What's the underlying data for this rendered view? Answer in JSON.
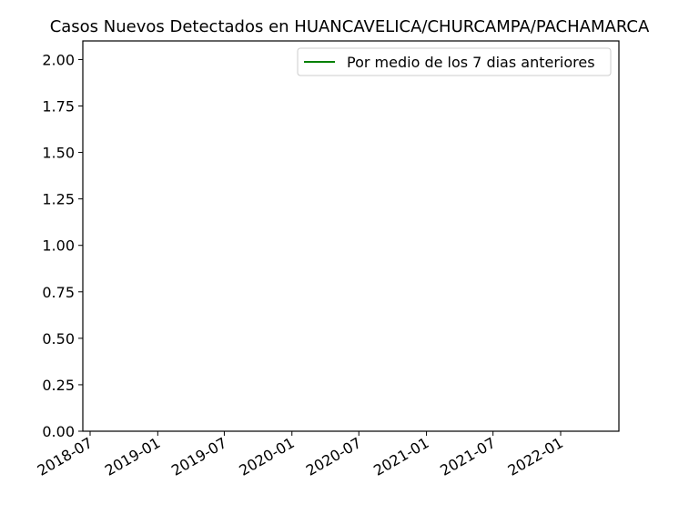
{
  "chart_data": {
    "type": "line",
    "title": "Casos Nuevos Detectados en HUANCAVELICA/CHURCAMPA/PACHAMARCA",
    "xlabel": "",
    "ylabel": "",
    "ylim": [
      0,
      2.1
    ],
    "yticks": [
      0.0,
      0.25,
      0.5,
      0.75,
      1.0,
      1.25,
      1.5,
      1.75,
      2.0
    ],
    "ytick_labels": [
      "0.00",
      "0.25",
      "0.50",
      "0.75",
      "1.00",
      "1.25",
      "1.50",
      "1.75",
      "2.00"
    ],
    "xticks": [
      "2018-07-01",
      "2019-01-01",
      "2019-07-01",
      "2020-01-01",
      "2020-07-01",
      "2021-01-01",
      "2021-07-01",
      "2022-01-01"
    ],
    "xtick_labels": [
      "2018-07",
      "2019-01",
      "2019-07",
      "2020-01",
      "2020-07",
      "2021-01",
      "2021-07",
      "2022-01"
    ],
    "grid": false,
    "legend_position": "top-right",
    "series": [
      {
        "name": "Por medio de los 7 dias anteriores",
        "color": "#008000",
        "values": []
      }
    ]
  }
}
